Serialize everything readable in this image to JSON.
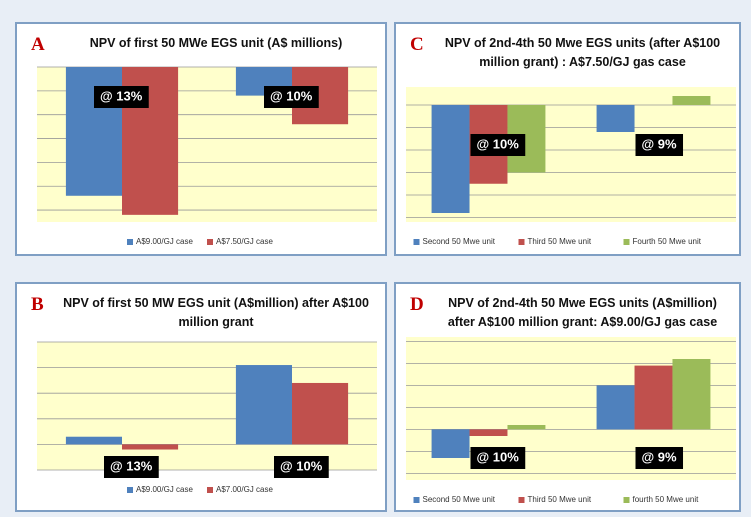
{
  "chart_data": [
    {
      "type": "bar",
      "panel_label": "A",
      "title": "NPV of first 50 MWe EGS unit (A$ millions)",
      "categories": [
        null,
        null
      ],
      "annotations": [
        "@ 13%",
        "@ 10%"
      ],
      "series": [
        {
          "name": "A$9.00/GJ case",
          "color": "#4f81bd",
          "values": [
            -5.4,
            -1.2
          ]
        },
        {
          "name": "A$7.50/GJ case",
          "color": "#c0504d",
          "values": [
            -6.2,
            -2.4
          ]
        }
      ],
      "ylim": [
        -6.5,
        0
      ],
      "yticks": [
        -6,
        -5,
        -4,
        -3,
        -2,
        -1,
        0
      ],
      "grid": true,
      "legend": "bottom"
    },
    {
      "type": "bar",
      "panel_label": "C",
      "title": "NPV of 2nd-4th 50 Mwe EGS units (after A$100 million grant) : A$7.50/GJ gas case",
      "categories": [
        null,
        null
      ],
      "annotations": [
        "@ 10%",
        "@ 9%"
      ],
      "series": [
        {
          "name": "Second 50 Mwe unit",
          "color": "#4f81bd",
          "values": [
            -4.8,
            -1.2
          ]
        },
        {
          "name": "Third 50 Mwe unit",
          "color": "#c0504d",
          "values": [
            -3.5,
            null
          ]
        },
        {
          "name": "Fourth 50 Mwe unit",
          "color": "#9bbb59",
          "values": [
            -3.0,
            0.4
          ]
        }
      ],
      "ylim": [
        -5.2,
        0.8
      ],
      "yticks": [
        -5,
        -4,
        -3,
        -2,
        -1,
        0
      ],
      "grid": true,
      "legend": "bottom"
    },
    {
      "type": "bar",
      "panel_label": "B",
      "title": "NPV of first 50 MW EGS unit (A$million) after A$100 million grant",
      "categories": [
        null,
        null
      ],
      "annotations": [
        "@ 13%",
        "@ 10%"
      ],
      "series": [
        {
          "name": "A$9.00/GJ case",
          "color": "#4f81bd",
          "values": [
            0.3,
            3.1
          ]
        },
        {
          "name": "A$7.00/GJ case",
          "color": "#c0504d",
          "values": [
            -0.2,
            2.4
          ]
        }
      ],
      "ylim": [
        -1,
        4
      ],
      "yticks": [
        -1,
        0,
        1,
        2,
        3,
        4
      ],
      "grid": true,
      "legend": "bottom"
    },
    {
      "type": "bar",
      "panel_label": "D",
      "title": "NPV of 2nd-4th 50 Mwe EGS units (A$million) after A$100 million grant: A$9.00/GJ  gas case",
      "categories": [
        null,
        null
      ],
      "annotations": [
        "@ 10%",
        "@ 9%"
      ],
      "series": [
        {
          "name": "Second 50 Mwe unit",
          "color": "#4f81bd",
          "values": [
            -1.3,
            2.0
          ]
        },
        {
          "name": "Third 50 Mwe unit",
          "color": "#c0504d",
          "values": [
            -0.3,
            2.9
          ]
        },
        {
          "name": "fourth 50 Mwe unit",
          "color": "#9bbb59",
          "values": [
            0.2,
            3.2
          ]
        }
      ],
      "ylim": [
        -2.3,
        4.2
      ],
      "yticks": [
        -2,
        -1,
        0,
        1,
        2,
        3,
        4
      ],
      "grid": true,
      "legend": "bottom"
    }
  ]
}
